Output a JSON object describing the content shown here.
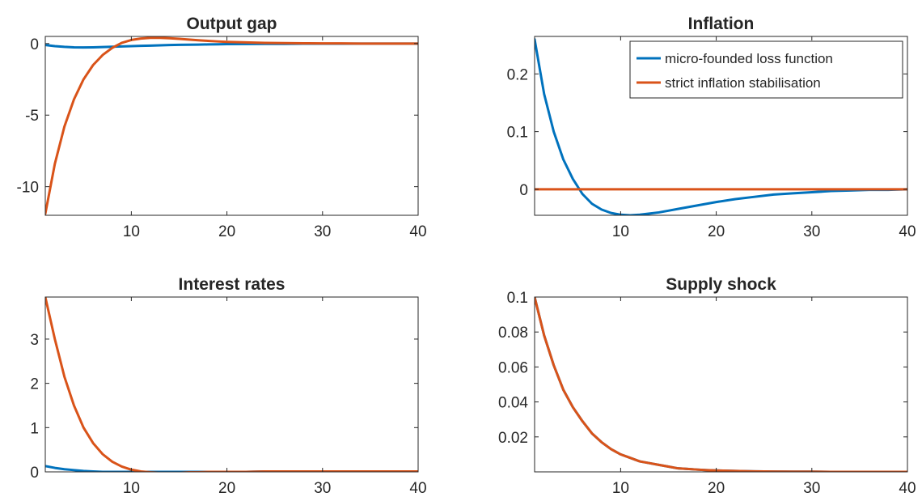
{
  "chart_data": [
    {
      "type": "line",
      "title": "Output gap",
      "xlabel": "",
      "ylabel": "",
      "xlim": [
        1,
        40
      ],
      "ylim": [
        -12,
        0.5
      ],
      "xticks": [
        10,
        20,
        30,
        40
      ],
      "yticks": [
        0,
        -5,
        -10
      ],
      "xtick_labels": [
        "10",
        "20",
        "30",
        "40"
      ],
      "ytick_labels": [
        "0",
        "-5",
        "-10"
      ],
      "grid": false,
      "x": [
        1,
        2,
        3,
        4,
        5,
        6,
        7,
        8,
        9,
        10,
        11,
        12,
        13,
        14,
        15,
        16,
        17,
        18,
        19,
        20,
        22,
        24,
        26,
        28,
        30,
        32,
        34,
        36,
        38,
        40
      ],
      "series": [
        {
          "color": "#0072BD",
          "values": [
            -0.1,
            -0.18,
            -0.23,
            -0.26,
            -0.27,
            -0.26,
            -0.24,
            -0.22,
            -0.2,
            -0.18,
            -0.16,
            -0.14,
            -0.12,
            -0.1,
            -0.09,
            -0.08,
            -0.07,
            -0.06,
            -0.05,
            -0.04,
            -0.03,
            -0.02,
            -0.02,
            -0.01,
            -0.01,
            -0.01,
            0,
            0,
            0,
            0
          ]
        },
        {
          "color": "#D95319",
          "values": [
            -11.9,
            -8.4,
            -5.8,
            -3.9,
            -2.5,
            -1.5,
            -0.8,
            -0.3,
            0.05,
            0.25,
            0.35,
            0.4,
            0.4,
            0.37,
            0.33,
            0.28,
            0.23,
            0.19,
            0.15,
            0.12,
            0.08,
            0.05,
            0.03,
            0.02,
            0.01,
            0.01,
            0,
            0,
            0,
            0
          ]
        }
      ]
    },
    {
      "type": "line",
      "title": "Inflation",
      "xlabel": "",
      "ylabel": "",
      "xlim": [
        1,
        40
      ],
      "ylim": [
        -0.045,
        0.265
      ],
      "xticks": [
        10,
        20,
        30,
        40
      ],
      "yticks": [
        0,
        0.1,
        0.2
      ],
      "xtick_labels": [
        "10",
        "20",
        "30",
        "40"
      ],
      "ytick_labels": [
        "0",
        "0.1",
        "0.2"
      ],
      "grid": false,
      "legend": {
        "position": "top-right",
        "entries": [
          "micro-founded loss function",
          "strict inflation stabilisation"
        ]
      },
      "x": [
        1,
        2,
        3,
        4,
        5,
        6,
        7,
        8,
        9,
        10,
        11,
        12,
        13,
        14,
        15,
        16,
        17,
        18,
        19,
        20,
        22,
        24,
        26,
        28,
        30,
        32,
        34,
        36,
        38,
        40
      ],
      "series": [
        {
          "name": "micro-founded loss function",
          "color": "#0072BD",
          "values": [
            0.26,
            0.165,
            0.1,
            0.052,
            0.018,
            -0.008,
            -0.025,
            -0.035,
            -0.041,
            -0.044,
            -0.045,
            -0.044,
            -0.042,
            -0.04,
            -0.037,
            -0.034,
            -0.031,
            -0.028,
            -0.025,
            -0.022,
            -0.017,
            -0.013,
            -0.009,
            -0.007,
            -0.005,
            -0.003,
            -0.002,
            -0.001,
            -0.001,
            0
          ]
        },
        {
          "name": "strict inflation stabilisation",
          "color": "#D95319",
          "values": [
            0,
            0,
            0,
            0,
            0,
            0,
            0,
            0,
            0,
            0,
            0,
            0,
            0,
            0,
            0,
            0,
            0,
            0,
            0,
            0,
            0,
            0,
            0,
            0,
            0,
            0,
            0,
            0,
            0,
            0
          ]
        }
      ]
    },
    {
      "type": "line",
      "title": "Interest rates",
      "xlabel": "",
      "ylabel": "",
      "xlim": [
        1,
        40
      ],
      "ylim": [
        0,
        3.95
      ],
      "xticks": [
        10,
        20,
        30,
        40
      ],
      "yticks": [
        0,
        1,
        2,
        3
      ],
      "xtick_labels": [
        "10",
        "20",
        "30",
        "40"
      ],
      "ytick_labels": [
        "0",
        "1",
        "2",
        "3"
      ],
      "grid": false,
      "x": [
        1,
        2,
        3,
        4,
        5,
        6,
        7,
        8,
        9,
        10,
        11,
        12,
        13,
        14,
        15,
        16,
        17,
        18,
        19,
        20,
        22,
        24,
        26,
        28,
        30,
        32,
        34,
        36,
        38,
        40
      ],
      "series": [
        {
          "color": "#0072BD",
          "values": [
            0.13,
            0.09,
            0.06,
            0.04,
            0.02,
            0.01,
            0,
            0,
            0,
            0,
            0,
            0,
            0,
            0,
            0,
            0,
            0,
            0,
            0,
            0,
            0,
            0.01,
            0.01,
            0.01,
            0.01,
            0.01,
            0.01,
            0.01,
            0.01,
            0.01
          ]
        },
        {
          "color": "#D95319",
          "values": [
            3.95,
            3.0,
            2.15,
            1.5,
            1.0,
            0.65,
            0.4,
            0.23,
            0.12,
            0.05,
            0.01,
            -0.01,
            -0.02,
            -0.02,
            -0.02,
            -0.01,
            -0.01,
            0,
            0,
            0,
            0,
            0.01,
            0.01,
            0.01,
            0.01,
            0.01,
            0.01,
            0.01,
            0.01,
            0.01
          ]
        }
      ]
    },
    {
      "type": "line",
      "title": "Supply shock",
      "xlabel": "",
      "ylabel": "",
      "xlim": [
        1,
        40
      ],
      "ylim": [
        0,
        0.1
      ],
      "xticks": [
        10,
        20,
        30,
        40
      ],
      "yticks": [
        0.02,
        0.04,
        0.06,
        0.08,
        0.1
      ],
      "xtick_labels": [
        "10",
        "20",
        "30",
        "40"
      ],
      "ytick_labels": [
        "0.02",
        "0.04",
        "0.06",
        "0.08",
        "0.1"
      ],
      "grid": false,
      "x": [
        1,
        2,
        3,
        4,
        5,
        6,
        7,
        8,
        9,
        10,
        11,
        12,
        13,
        14,
        15,
        16,
        17,
        18,
        19,
        20,
        22,
        24,
        26,
        28,
        30,
        32,
        34,
        36,
        38,
        40
      ],
      "series": [
        {
          "color": "#0072BD",
          "values": [
            0.1,
            0.078,
            0.061,
            0.047,
            0.037,
            0.029,
            0.022,
            0.017,
            0.013,
            0.01,
            0.008,
            0.006,
            0.005,
            0.004,
            0.003,
            0.002,
            0.0017,
            0.0013,
            0.001,
            0.0008,
            0.0005,
            0.0003,
            0.0002,
            0.0001,
            0.0001,
            0,
            0,
            0,
            0,
            0
          ]
        },
        {
          "color": "#D95319",
          "values": [
            0.1,
            0.078,
            0.061,
            0.047,
            0.037,
            0.029,
            0.022,
            0.017,
            0.013,
            0.01,
            0.008,
            0.006,
            0.005,
            0.004,
            0.003,
            0.002,
            0.0017,
            0.0013,
            0.001,
            0.0008,
            0.0005,
            0.0003,
            0.0002,
            0.0001,
            0.0001,
            0,
            0,
            0,
            0,
            0
          ]
        }
      ]
    }
  ]
}
